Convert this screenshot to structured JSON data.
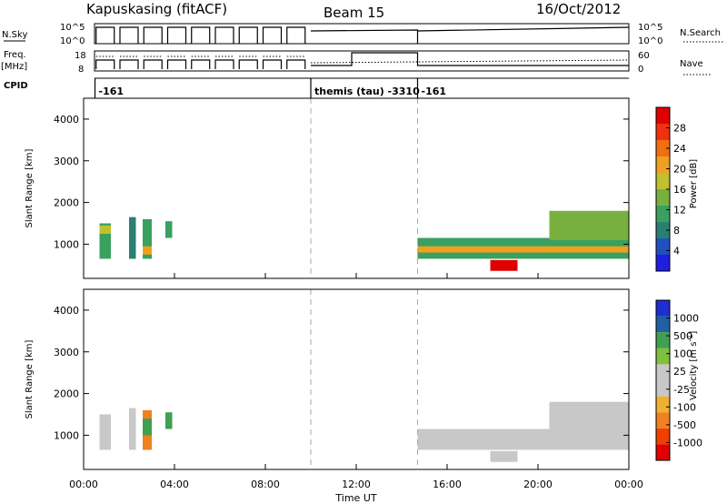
{
  "header": {
    "station": "Kapuskasing (fitACF)",
    "beam": "Beam 15",
    "date": "16/Oct/2012"
  },
  "top_panels": {
    "nsky_label": "N.Sky",
    "nsky_ticks": [
      "10^5",
      "10^0"
    ],
    "nsearch_label": "N.Search",
    "nsearch_ticks": [
      "10^5",
      "10^0"
    ],
    "freq_label_1": "Freq.",
    "freq_label_2": "[MHz]",
    "freq_ticks": [
      "18",
      "8"
    ],
    "nave_label": "Nave",
    "nave_ticks": [
      "60",
      "0"
    ],
    "cpid_label": "CPID",
    "cpid_segments": [
      {
        "label": "-161",
        "start_hour": 0.5
      },
      {
        "label": "themis (tau) -3310",
        "start_hour": 10.0
      },
      {
        "label": "-161",
        "start_hour": 14.7
      }
    ]
  },
  "colors": {
    "power_scale": [
      "#1e1ee0",
      "#2050c0",
      "#2a8070",
      "#3aa060",
      "#78b040",
      "#c0c030",
      "#f0a020",
      "#f07010",
      "#f03010",
      "#e00000"
    ],
    "velocity_scale": [
      "#e00000",
      "#f04000",
      "#f08020",
      "#f0b030",
      "#c8c8c8",
      "#c8c8c8",
      "#80c040",
      "#40a050",
      "#2060a0",
      "#1e2ed0"
    ]
  },
  "chart_data": [
    {
      "type": "heatmap",
      "quantity": "power",
      "ylabel": "Slant Range [km]",
      "ylim": [
        180,
        4500
      ],
      "yticks": [
        "1000",
        "2000",
        "3000",
        "4000"
      ],
      "colorbar_label": "Power [dB]",
      "colorbar_range": [
        0,
        32
      ],
      "colorbar_ticks": [
        "4",
        "8",
        "12",
        "16",
        "20",
        "24",
        "28"
      ],
      "dashed_lines_hours": [
        10.0,
        14.7
      ],
      "regions": [
        {
          "t0": 0.7,
          "t1": 1.2,
          "r0": 650,
          "r1": 1500,
          "value": 10
        },
        {
          "t0": 0.7,
          "t1": 1.2,
          "r0": 1250,
          "r1": 1450,
          "value": 16
        },
        {
          "t0": 2.0,
          "t1": 2.3,
          "r0": 650,
          "r1": 1650,
          "value": 9
        },
        {
          "t0": 2.6,
          "t1": 3.0,
          "r0": 650,
          "r1": 1600,
          "value": 12
        },
        {
          "t0": 2.6,
          "t1": 3.0,
          "r0": 750,
          "r1": 950,
          "value": 20
        },
        {
          "t0": 3.6,
          "t1": 3.9,
          "r0": 1150,
          "r1": 1550,
          "value": 12
        },
        {
          "t0": 14.7,
          "t1": 24.0,
          "r0": 650,
          "r1": 1150,
          "value": 12
        },
        {
          "t0": 14.7,
          "t1": 24.0,
          "r0": 800,
          "r1": 950,
          "value": 20
        },
        {
          "t0": 17.9,
          "t1": 19.1,
          "r0": 360,
          "r1": 620,
          "value": 30
        },
        {
          "t0": 20.5,
          "t1": 24.0,
          "r0": 1100,
          "r1": 1800,
          "value": 13
        }
      ]
    },
    {
      "type": "heatmap",
      "quantity": "velocity",
      "ylabel": "Slant Range [km]",
      "ylim": [
        180,
        4500
      ],
      "yticks": [
        "1000",
        "2000",
        "3000",
        "4000"
      ],
      "xlabel": "Time UT",
      "xlim_hours": [
        0,
        24
      ],
      "xticks": [
        "00:00",
        "04:00",
        "08:00",
        "12:00",
        "16:00",
        "20:00",
        "00:00"
      ],
      "colorbar_label": "Velocity [m s",
      "colorbar_label_exponent": "-1",
      "colorbar_label_close": "]",
      "colorbar_ticks": [
        "1000",
        "500",
        "100",
        "25",
        "-25",
        "-100",
        "-500",
        "-1000"
      ],
      "dashed_lines_hours": [
        10.0,
        14.7
      ],
      "regions": [
        {
          "t0": 0.7,
          "t1": 1.2,
          "r0": 650,
          "r1": 1500,
          "value": 0
        },
        {
          "t0": 2.0,
          "t1": 2.3,
          "r0": 650,
          "r1": 1650,
          "value": 0
        },
        {
          "t0": 2.6,
          "t1": 3.0,
          "r0": 650,
          "r1": 1600,
          "value": -150
        },
        {
          "t0": 2.6,
          "t1": 3.0,
          "r0": 1000,
          "r1": 1400,
          "value": 150
        },
        {
          "t0": 3.6,
          "t1": 3.9,
          "r0": 1150,
          "r1": 1550,
          "value": 150
        },
        {
          "t0": 14.7,
          "t1": 24.0,
          "r0": 650,
          "r1": 1150,
          "value": 0
        },
        {
          "t0": 17.9,
          "t1": 19.1,
          "r0": 360,
          "r1": 620,
          "value": 0
        },
        {
          "t0": 20.5,
          "t1": 24.0,
          "r0": 1100,
          "r1": 1800,
          "value": 0
        }
      ]
    }
  ]
}
